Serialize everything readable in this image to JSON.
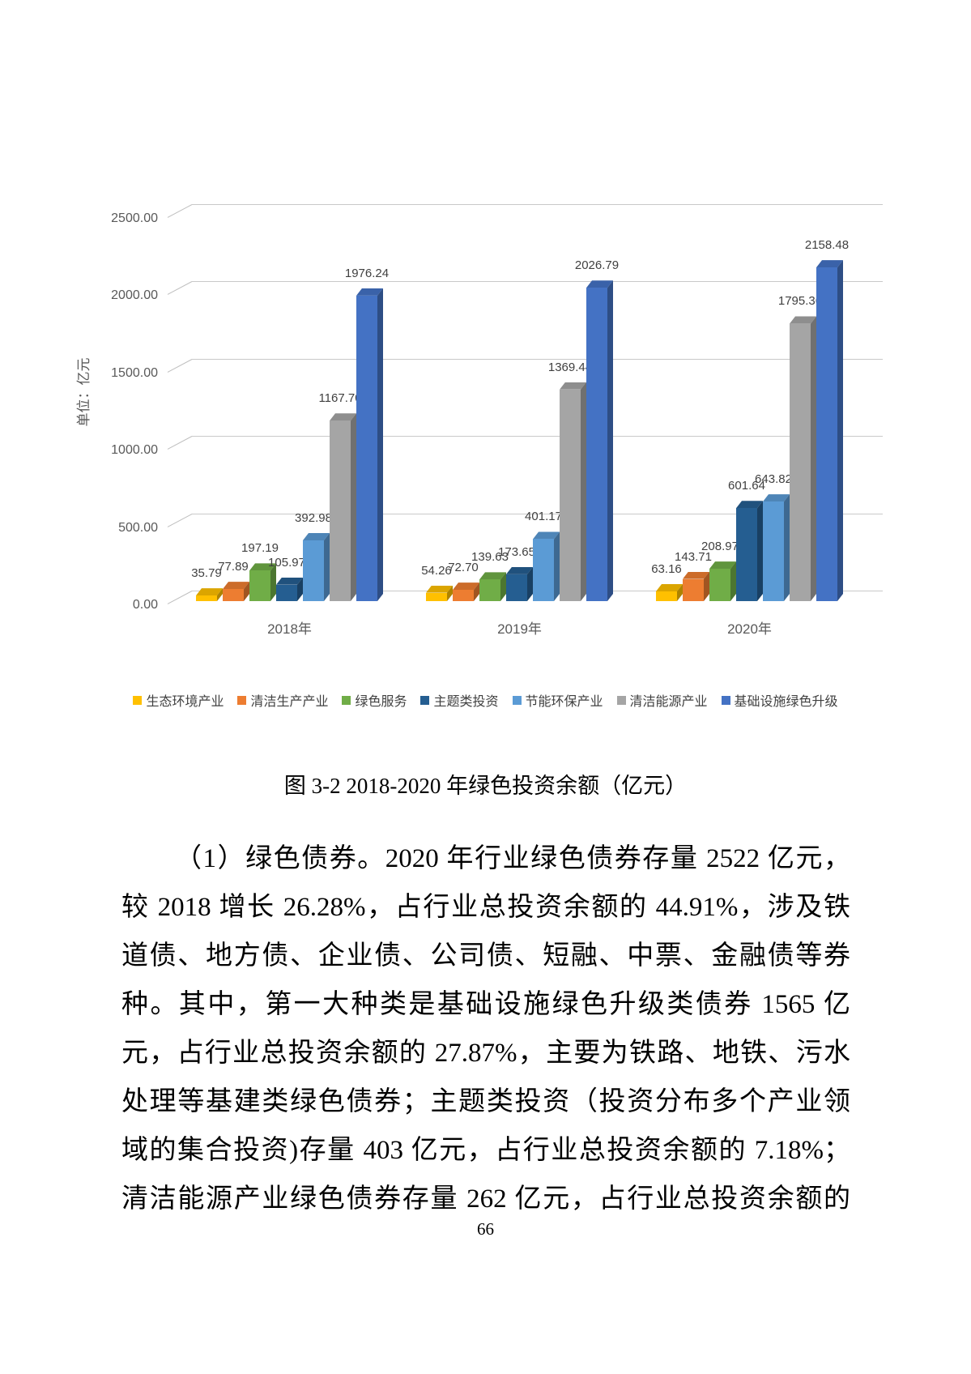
{
  "chart_data": {
    "type": "bar",
    "style": "3d-clustered",
    "unit_label": "单位：亿元",
    "categories": [
      "2018年",
      "2019年",
      "2020年"
    ],
    "series": [
      {
        "name": "生态环境产业",
        "color": "#FFC000",
        "values": [
          35.79,
          54.26,
          63.16
        ]
      },
      {
        "name": "清洁生产产业",
        "color": "#ED7D31",
        "values": [
          77.89,
          72.7,
          143.71
        ]
      },
      {
        "name": "绿色服务",
        "color": "#70AD47",
        "values": [
          197.19,
          139.63,
          208.97
        ]
      },
      {
        "name": "主题类投资",
        "color": "#255E91",
        "values": [
          105.97,
          173.65,
          601.64
        ]
      },
      {
        "name": "节能环保产业",
        "color": "#5B9BD5",
        "values": [
          392.98,
          401.17,
          643.82
        ]
      },
      {
        "name": "清洁能源产业",
        "color": "#A5A5A5",
        "values": [
          1167.7,
          1369.44,
          1795.36
        ]
      },
      {
        "name": "基础设施绿色升级",
        "color": "#4472C4",
        "values": [
          1976.24,
          2026.79,
          2158.48
        ]
      }
    ],
    "ylim": [
      0,
      2500
    ],
    "y_tick_interval": 500,
    "y_ticks": [
      "0.00",
      "500.00",
      "1000.00",
      "1500.00",
      "2000.00",
      "2500.00"
    ],
    "grid": true,
    "data_labels": true,
    "legend_position": "bottom"
  },
  "figure": {
    "caption": "图 3-2 2018-2020 年绿色投资余额（亿元）"
  },
  "body": {
    "lines": [
      "（1）绿色债券。2020 年行业绿色债券存量 2522 亿元，",
      "较 2018 增长 26.28%，占行业总投资余额的 44.91%，涉及铁",
      "道债、地方债、企业债、公司债、短融、中票、金融债等券",
      "种。其中，第一大种类是基础设施绿色升级类债券 1565 亿",
      "元，占行业总投资余额的 27.87%，主要为铁路、地铁、污水",
      "处理等基建类绿色债券；主题类投资（投资分布多个产业领",
      "域的集合投资)存量 403 亿元，占行业总投资余额的 7.18%；",
      "清洁能源产业绿色债券存量 262 亿元，占行业总投资余额的"
    ]
  },
  "page": {
    "number": "66"
  }
}
